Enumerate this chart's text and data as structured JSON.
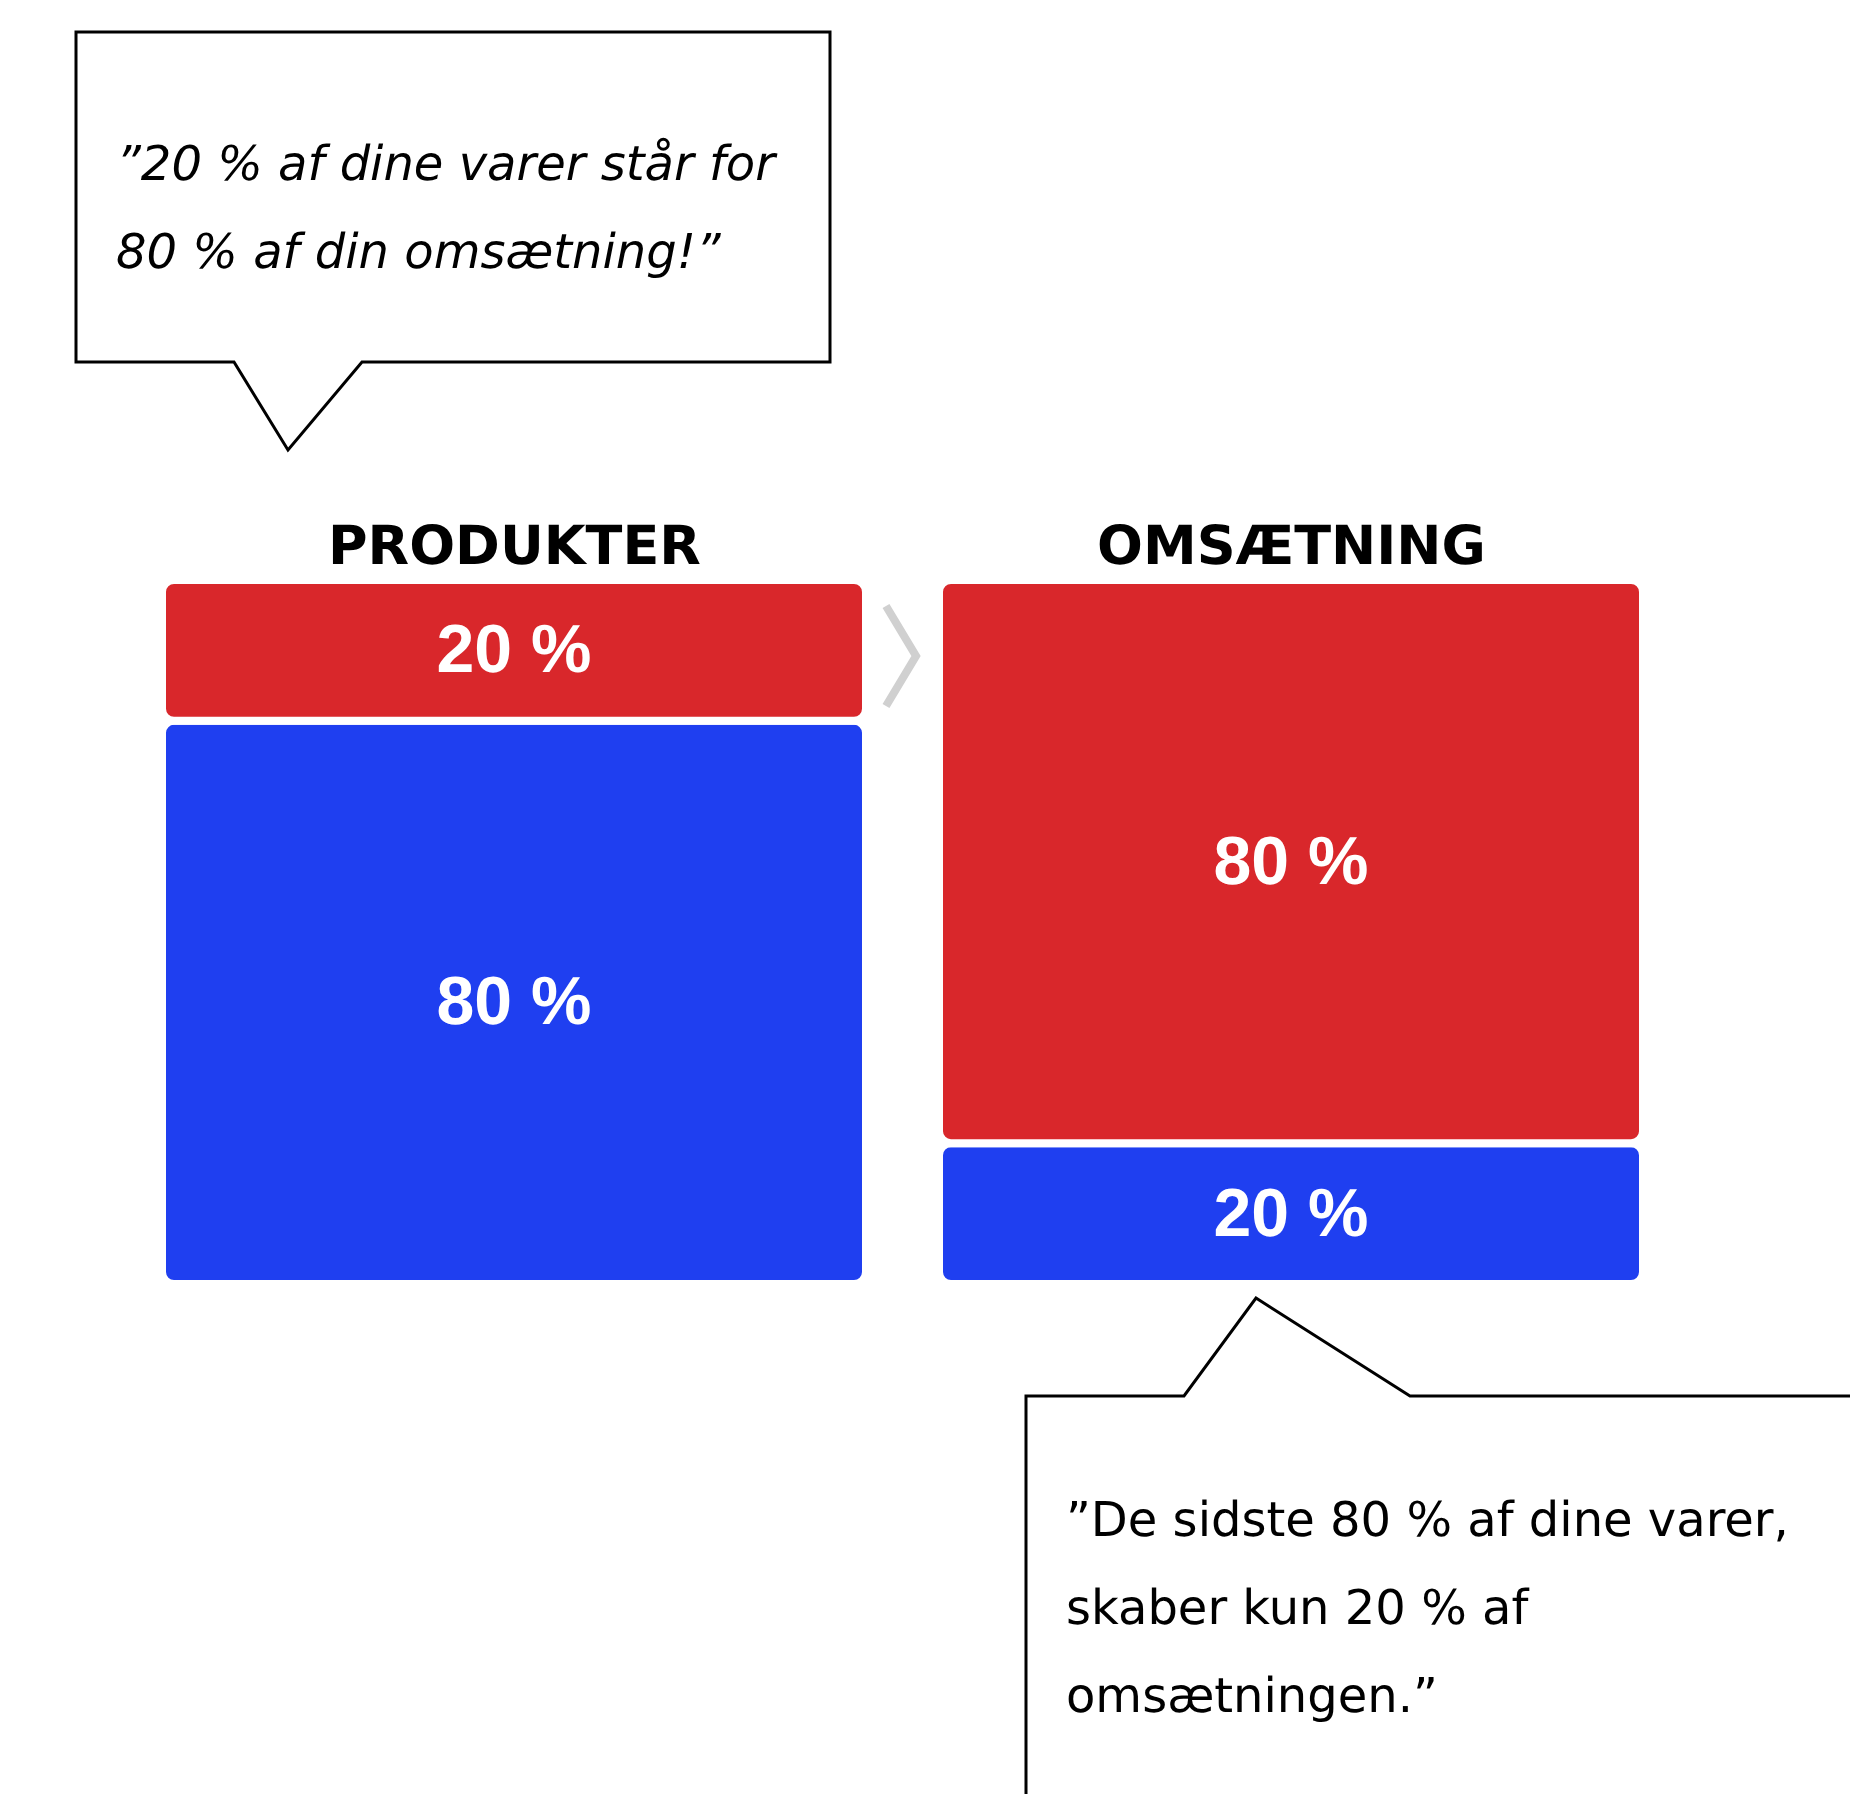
{
  "chart_data": {
    "type": "bar",
    "stacked": true,
    "categories": [
      "PRODUKTER",
      "OMSÆTNING"
    ],
    "series": [
      {
        "color": "#1f3ff0",
        "values": [
          80,
          20
        ],
        "value_labels": [
          "80 %",
          "20 %"
        ]
      },
      {
        "color": "#d9272b",
        "values": [
          20,
          80
        ],
        "value_labels": [
          "20 %",
          "80 %"
        ]
      }
    ],
    "annotations": [
      "”20 % af dine varer står for 80 % af din omsætning!”",
      "”De sidste 80 % af dine varer, skaber kun 20 % af omsætningen.”"
    ],
    "grid": false,
    "legend": false
  }
}
